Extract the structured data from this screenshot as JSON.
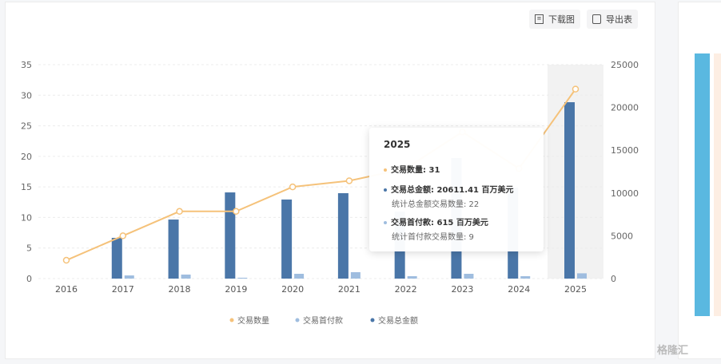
{
  "toolbar": {
    "download_label": "下载图",
    "export_label": "导出表"
  },
  "colors": {
    "count": "#f5c27a",
    "total": "#4a76a8",
    "down": "#9fbddf",
    "highlight": "#f2f2f2"
  },
  "chart_data": {
    "type": "bar",
    "categories": [
      "2016",
      "2017",
      "2018",
      "2019",
      "2020",
      "2021",
      "2022",
      "2023",
      "2024",
      "2025"
    ],
    "y_left": {
      "ticks": [
        "0",
        "5",
        "10",
        "15",
        "20",
        "25",
        "30",
        "35"
      ],
      "range": [
        0,
        35
      ]
    },
    "y_right": {
      "ticks": [
        "0",
        "5000",
        "10000",
        "15000",
        "20000",
        "25000"
      ],
      "range": [
        0,
        25000
      ]
    },
    "series": [
      {
        "name": "交易数量",
        "type": "line",
        "axis": "left",
        "values": [
          3,
          7,
          11,
          11,
          15,
          16,
          18,
          24,
          18,
          31
        ]
      },
      {
        "name": "交易首付款",
        "type": "bar",
        "axis": "right",
        "values": [
          0,
          370,
          470,
          100,
          560,
          750,
          280,
          560,
          280,
          615
        ]
      },
      {
        "name": "交易总金额",
        "type": "bar",
        "axis": "right",
        "values": [
          0,
          4760,
          6900,
          10070,
          9240,
          9980,
          7840,
          14090,
          10630,
          20611.41
        ]
      }
    ],
    "legend": [
      "交易数量",
      "交易首付款",
      "交易总金额"
    ],
    "legend_position": "bottom",
    "grid": true
  },
  "tooltip": {
    "title": "2025",
    "count_line": "交易数量: 31",
    "total_line": "交易总金额: 20611.41 百万美元",
    "total_sub": "统计总金额交易数量: 22",
    "down_line": "交易首付款: 615 百万美元",
    "down_sub": "统计首付款交易数量: 9"
  },
  "watermark": "格隆汇"
}
